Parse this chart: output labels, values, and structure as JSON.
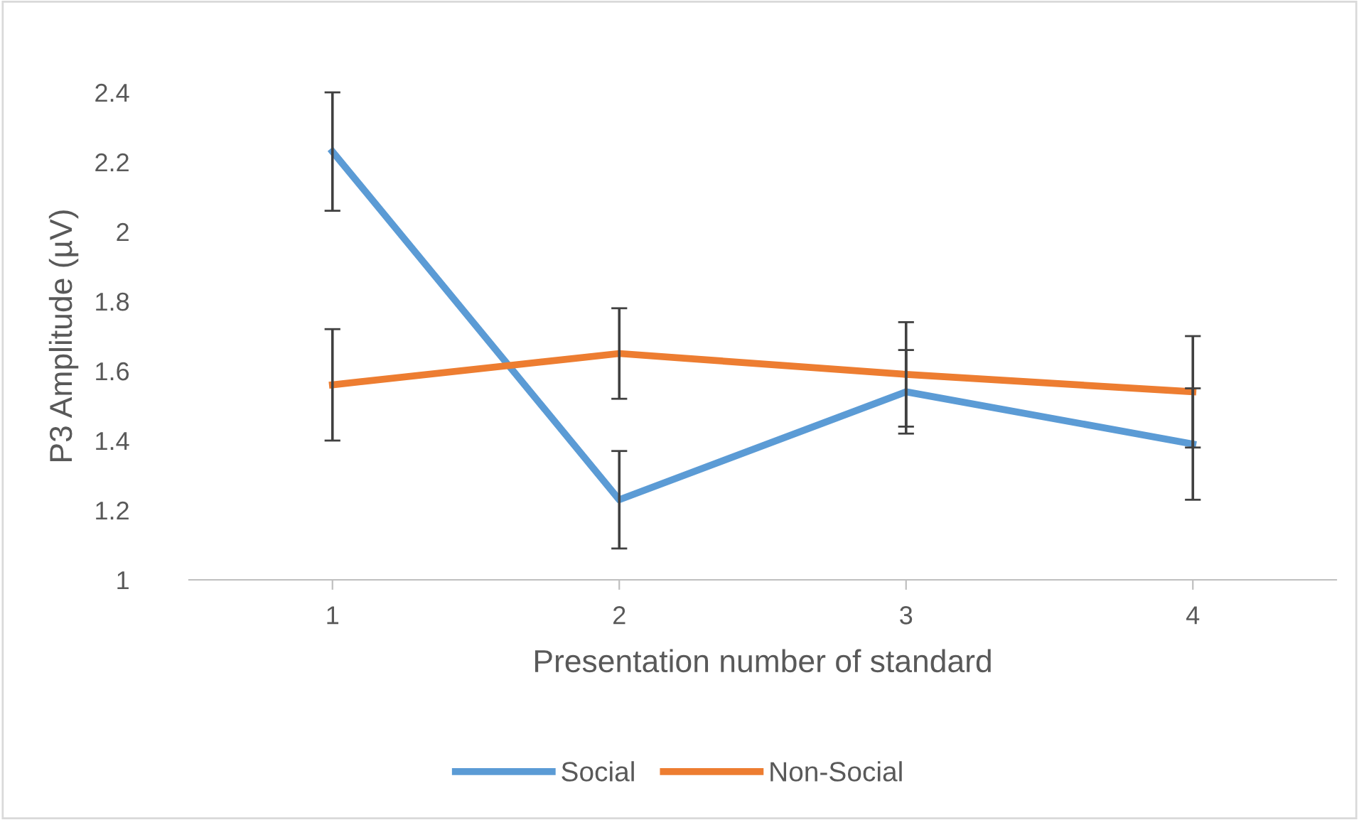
{
  "chart_data": {
    "type": "line",
    "xlabel": "Presentation number of standard",
    "ylabel": "P3 Amplitude (µV)",
    "categories": [
      "1",
      "2",
      "3",
      "4"
    ],
    "series": [
      {
        "name": "Social",
        "color": "#5b9bd5",
        "values": [
          2.23,
          1.23,
          1.54,
          1.39
        ],
        "errors": [
          0.17,
          0.14,
          0.12,
          0.16
        ]
      },
      {
        "name": "Non-Social",
        "color": "#ed7d31",
        "values": [
          1.56,
          1.65,
          1.59,
          1.54
        ],
        "errors": [
          0.16,
          0.13,
          0.15,
          0.16
        ]
      }
    ],
    "ylim": [
      1,
      2.4
    ],
    "yticks": [
      1,
      1.2,
      1.4,
      1.6,
      1.8,
      2,
      2.2,
      2.4
    ],
    "grid": false,
    "legend": "bottom",
    "marker": "none",
    "line_style": "solid"
  }
}
